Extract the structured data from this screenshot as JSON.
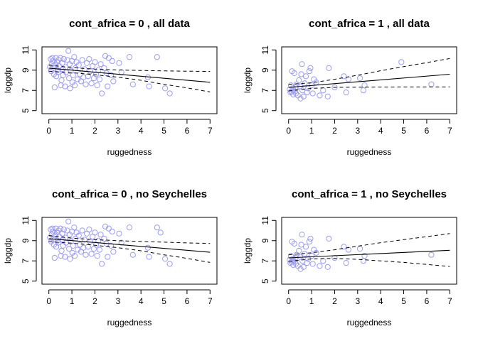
{
  "figure": {
    "background": "#ffffff",
    "point_color": "#9b9bf5",
    "line_color": "#000000"
  },
  "chart_data": [
    {
      "type": "scatter",
      "title": "cont_africa = 0 , all data",
      "xlabel": "ruggedness",
      "ylabel": "loggdp",
      "xlim": [
        -0.3,
        7.3
      ],
      "ylim": [
        4.7,
        11.3
      ],
      "xticks": [
        0,
        1,
        2,
        3,
        4,
        5,
        6,
        7
      ],
      "yticks": [
        5,
        7,
        9,
        11
      ],
      "points": [
        [
          0.05,
          9.3
        ],
        [
          0.08,
          10.1
        ],
        [
          0.1,
          8.9
        ],
        [
          0.12,
          9.6
        ],
        [
          0.15,
          10.2
        ],
        [
          0.18,
          9.9
        ],
        [
          0.2,
          9.2
        ],
        [
          0.22,
          8.6
        ],
        [
          0.25,
          7.3
        ],
        [
          0.28,
          9.5
        ],
        [
          0.3,
          10.2
        ],
        [
          0.32,
          8.4
        ],
        [
          0.35,
          9.8
        ],
        [
          0.38,
          9.0
        ],
        [
          0.4,
          8.8
        ],
        [
          0.42,
          10.0
        ],
        [
          0.45,
          9.4
        ],
        [
          0.5,
          10.2
        ],
        [
          0.52,
          7.5
        ],
        [
          0.55,
          8.0
        ],
        [
          0.58,
          9.7
        ],
        [
          0.6,
          9.1
        ],
        [
          0.62,
          8.5
        ],
        [
          0.65,
          10.1
        ],
        [
          0.7,
          7.4
        ],
        [
          0.72,
          9.3
        ],
        [
          0.75,
          8.8
        ],
        [
          0.8,
          10.0
        ],
        [
          0.85,
          10.9
        ],
        [
          0.88,
          8.2
        ],
        [
          0.9,
          9.6
        ],
        [
          0.92,
          7.2
        ],
        [
          0.95,
          8.9
        ],
        [
          1.0,
          9.9
        ],
        [
          1.02,
          7.8
        ],
        [
          1.05,
          8.5
        ],
        [
          1.1,
          10.3
        ],
        [
          1.12,
          7.5
        ],
        [
          1.15,
          9.2
        ],
        [
          1.2,
          9.8
        ],
        [
          1.25,
          8.1
        ],
        [
          1.3,
          9.5
        ],
        [
          1.35,
          8.6
        ],
        [
          1.4,
          7.9
        ],
        [
          1.45,
          10.0
        ],
        [
          1.5,
          8.3
        ],
        [
          1.55,
          9.1
        ],
        [
          1.6,
          7.6
        ],
        [
          1.65,
          9.7
        ],
        [
          1.7,
          8.4
        ],
        [
          1.75,
          10.1
        ],
        [
          1.8,
          8.9
        ],
        [
          1.85,
          7.7
        ],
        [
          1.9,
          9.4
        ],
        [
          1.95,
          8.2
        ],
        [
          2.0,
          9.8
        ],
        [
          2.05,
          8.6
        ],
        [
          2.1,
          7.5
        ],
        [
          2.15,
          9.0
        ],
        [
          2.2,
          8.1
        ],
        [
          2.25,
          9.6
        ],
        [
          2.3,
          6.7
        ],
        [
          2.4,
          9.2
        ],
        [
          2.45,
          10.4
        ],
        [
          2.5,
          8.7
        ],
        [
          2.55,
          7.4
        ],
        [
          2.6,
          10.2
        ],
        [
          2.7,
          8.5
        ],
        [
          2.75,
          9.9
        ],
        [
          2.8,
          7.9
        ],
        [
          3.05,
          9.7
        ],
        [
          3.15,
          8.8
        ],
        [
          3.5,
          10.3
        ],
        [
          3.65,
          7.6
        ],
        [
          4.3,
          8.3
        ],
        [
          4.35,
          7.4
        ],
        [
          4.7,
          10.3
        ],
        [
          5.05,
          7.2
        ],
        [
          5.25,
          6.7
        ]
      ],
      "fit": {
        "x": [
          0,
          7
        ],
        "y": [
          9.2,
          7.8
        ]
      },
      "band_upper": {
        "x": [
          0,
          1,
          2,
          3,
          4,
          5,
          6,
          7
        ],
        "y": [
          9.5,
          9.25,
          9.1,
          9.02,
          8.97,
          8.93,
          8.9,
          8.88
        ]
      },
      "band_lower": {
        "x": [
          0,
          1,
          2,
          3,
          4,
          5,
          6,
          7
        ],
        "y": [
          8.9,
          8.75,
          8.55,
          8.3,
          8.0,
          7.6,
          7.25,
          6.85
        ]
      }
    },
    {
      "type": "scatter",
      "title": "cont_africa = 1 , all data",
      "xlabel": "ruggedness",
      "ylabel": "loggdp",
      "xlim": [
        -0.3,
        7.3
      ],
      "ylim": [
        4.7,
        11.3
      ],
      "xticks": [
        0,
        1,
        2,
        3,
        4,
        5,
        6,
        7
      ],
      "yticks": [
        5,
        7,
        9,
        11
      ],
      "points": [
        [
          0.05,
          7.1
        ],
        [
          0.08,
          6.8
        ],
        [
          0.1,
          7.5
        ],
        [
          0.12,
          6.9
        ],
        [
          0.15,
          8.9
        ],
        [
          0.18,
          7.2
        ],
        [
          0.2,
          6.6
        ],
        [
          0.22,
          7.0
        ],
        [
          0.25,
          8.7
        ],
        [
          0.28,
          6.9
        ],
        [
          0.3,
          7.3
        ],
        [
          0.32,
          6.7
        ],
        [
          0.35,
          7.6
        ],
        [
          0.4,
          6.5
        ],
        [
          0.45,
          8.0
        ],
        [
          0.5,
          7.4
        ],
        [
          0.52,
          6.2
        ],
        [
          0.55,
          8.6
        ],
        [
          0.58,
          9.6
        ],
        [
          0.6,
          7.0
        ],
        [
          0.65,
          6.4
        ],
        [
          0.7,
          7.7
        ],
        [
          0.75,
          8.4
        ],
        [
          0.8,
          6.8
        ],
        [
          0.85,
          7.2
        ],
        [
          0.9,
          8.9
        ],
        [
          0.95,
          9.2
        ],
        [
          1.0,
          7.5
        ],
        [
          1.05,
          6.7
        ],
        [
          1.1,
          8.1
        ],
        [
          1.2,
          7.8
        ],
        [
          1.35,
          6.5
        ],
        [
          1.5,
          7.0
        ],
        [
          1.7,
          6.4
        ],
        [
          1.75,
          9.2
        ],
        [
          2.0,
          7.3
        ],
        [
          2.4,
          8.4
        ],
        [
          2.5,
          6.8
        ],
        [
          2.6,
          8.1
        ],
        [
          3.1,
          8.2
        ],
        [
          3.25,
          7.0
        ],
        [
          3.3,
          7.5
        ],
        [
          4.9,
          9.8
        ],
        [
          6.2,
          7.6
        ]
      ],
      "fit": {
        "x": [
          0,
          7
        ],
        "y": [
          7.3,
          8.6
        ]
      },
      "band_upper": {
        "x": [
          0,
          1,
          2,
          3,
          4,
          5,
          6,
          7
        ],
        "y": [
          7.6,
          7.75,
          8.1,
          8.5,
          8.95,
          9.35,
          9.75,
          10.15
        ]
      },
      "band_lower": {
        "x": [
          0,
          1,
          2,
          3,
          4,
          5,
          6,
          7
        ],
        "y": [
          6.95,
          7.2,
          7.3,
          7.32,
          7.33,
          7.34,
          7.34,
          7.35
        ]
      }
    },
    {
      "type": "scatter",
      "title": "cont_africa = 0 , no Seychelles",
      "xlabel": "ruggedness",
      "ylabel": "loggdp",
      "xlim": [
        -0.3,
        7.3
      ],
      "ylim": [
        4.7,
        11.3
      ],
      "xticks": [
        0,
        1,
        2,
        3,
        4,
        5,
        6,
        7
      ],
      "yticks": [
        5,
        7,
        9,
        11
      ],
      "points": [
        [
          0.05,
          9.3
        ],
        [
          0.08,
          10.1
        ],
        [
          0.1,
          8.9
        ],
        [
          0.12,
          9.6
        ],
        [
          0.15,
          10.2
        ],
        [
          0.18,
          9.9
        ],
        [
          0.2,
          9.2
        ],
        [
          0.22,
          8.6
        ],
        [
          0.25,
          7.3
        ],
        [
          0.28,
          9.5
        ],
        [
          0.3,
          10.2
        ],
        [
          0.32,
          8.4
        ],
        [
          0.35,
          9.8
        ],
        [
          0.38,
          9.0
        ],
        [
          0.4,
          8.8
        ],
        [
          0.42,
          10.0
        ],
        [
          0.45,
          9.4
        ],
        [
          0.5,
          10.2
        ],
        [
          0.52,
          7.5
        ],
        [
          0.55,
          8.0
        ],
        [
          0.58,
          9.7
        ],
        [
          0.6,
          9.1
        ],
        [
          0.62,
          8.5
        ],
        [
          0.65,
          10.1
        ],
        [
          0.7,
          7.4
        ],
        [
          0.72,
          9.3
        ],
        [
          0.75,
          8.8
        ],
        [
          0.8,
          10.0
        ],
        [
          0.85,
          10.9
        ],
        [
          0.88,
          8.2
        ],
        [
          0.9,
          9.6
        ],
        [
          0.92,
          7.2
        ],
        [
          0.95,
          8.9
        ],
        [
          1.0,
          9.9
        ],
        [
          1.02,
          7.8
        ],
        [
          1.05,
          8.5
        ],
        [
          1.1,
          10.3
        ],
        [
          1.12,
          7.5
        ],
        [
          1.15,
          9.2
        ],
        [
          1.2,
          9.8
        ],
        [
          1.25,
          8.1
        ],
        [
          1.3,
          9.5
        ],
        [
          1.35,
          8.6
        ],
        [
          1.4,
          7.9
        ],
        [
          1.45,
          10.0
        ],
        [
          1.5,
          8.3
        ],
        [
          1.55,
          9.1
        ],
        [
          1.6,
          7.6
        ],
        [
          1.65,
          9.7
        ],
        [
          1.7,
          8.4
        ],
        [
          1.75,
          10.1
        ],
        [
          1.8,
          8.9
        ],
        [
          1.85,
          7.7
        ],
        [
          1.9,
          9.4
        ],
        [
          1.95,
          8.2
        ],
        [
          2.0,
          9.8
        ],
        [
          2.05,
          8.6
        ],
        [
          2.1,
          7.5
        ],
        [
          2.15,
          9.0
        ],
        [
          2.2,
          8.1
        ],
        [
          2.25,
          9.6
        ],
        [
          2.3,
          6.7
        ],
        [
          2.4,
          9.2
        ],
        [
          2.45,
          10.4
        ],
        [
          2.5,
          8.7
        ],
        [
          2.55,
          7.4
        ],
        [
          2.6,
          10.2
        ],
        [
          2.7,
          8.5
        ],
        [
          2.75,
          9.9
        ],
        [
          2.8,
          7.9
        ],
        [
          3.05,
          9.7
        ],
        [
          3.15,
          8.8
        ],
        [
          3.5,
          10.3
        ],
        [
          3.65,
          7.6
        ],
        [
          4.3,
          8.3
        ],
        [
          4.35,
          7.4
        ],
        [
          4.7,
          10.3
        ],
        [
          4.85,
          9.8
        ],
        [
          5.05,
          7.2
        ],
        [
          5.25,
          6.7
        ]
      ],
      "fit": {
        "x": [
          0,
          7
        ],
        "y": [
          9.2,
          7.85
        ]
      },
      "band_upper": {
        "x": [
          0,
          1,
          2,
          3,
          4,
          5,
          6,
          7
        ],
        "y": [
          9.5,
          9.25,
          9.1,
          9.0,
          8.92,
          8.85,
          8.78,
          8.72
        ]
      },
      "band_lower": {
        "x": [
          0,
          1,
          2,
          3,
          4,
          5,
          6,
          7
        ],
        "y": [
          8.9,
          8.75,
          8.55,
          8.3,
          8.0,
          7.6,
          7.25,
          6.85
        ]
      }
    },
    {
      "type": "scatter",
      "title": "cont_africa = 1 , no Seychelles",
      "xlabel": "ruggedness",
      "ylabel": "loggdp",
      "xlim": [
        -0.3,
        7.3
      ],
      "ylim": [
        4.7,
        11.3
      ],
      "xticks": [
        0,
        1,
        2,
        3,
        4,
        5,
        6,
        7
      ],
      "yticks": [
        5,
        7,
        9,
        11
      ],
      "points": [
        [
          0.05,
          7.1
        ],
        [
          0.08,
          6.8
        ],
        [
          0.1,
          7.5
        ],
        [
          0.12,
          6.9
        ],
        [
          0.15,
          8.9
        ],
        [
          0.18,
          7.2
        ],
        [
          0.2,
          6.6
        ],
        [
          0.22,
          7.0
        ],
        [
          0.25,
          8.7
        ],
        [
          0.28,
          6.9
        ],
        [
          0.3,
          7.3
        ],
        [
          0.32,
          6.7
        ],
        [
          0.35,
          7.6
        ],
        [
          0.4,
          6.5
        ],
        [
          0.45,
          8.0
        ],
        [
          0.5,
          7.4
        ],
        [
          0.52,
          6.2
        ],
        [
          0.55,
          8.6
        ],
        [
          0.58,
          9.6
        ],
        [
          0.6,
          7.0
        ],
        [
          0.65,
          6.4
        ],
        [
          0.7,
          7.7
        ],
        [
          0.75,
          8.4
        ],
        [
          0.8,
          6.8
        ],
        [
          0.85,
          7.2
        ],
        [
          0.9,
          8.9
        ],
        [
          0.95,
          9.2
        ],
        [
          1.0,
          7.5
        ],
        [
          1.05,
          6.7
        ],
        [
          1.1,
          8.1
        ],
        [
          1.2,
          7.8
        ],
        [
          1.35,
          6.5
        ],
        [
          1.5,
          7.0
        ],
        [
          1.7,
          6.4
        ],
        [
          1.75,
          9.2
        ],
        [
          2.0,
          7.3
        ],
        [
          2.4,
          8.4
        ],
        [
          2.5,
          6.8
        ],
        [
          2.6,
          8.1
        ],
        [
          3.1,
          8.2
        ],
        [
          3.25,
          7.0
        ],
        [
          3.3,
          7.5
        ],
        [
          6.2,
          7.6
        ]
      ],
      "fit": {
        "x": [
          0,
          7
        ],
        "y": [
          7.3,
          8.05
        ]
      },
      "band_upper": {
        "x": [
          0,
          1,
          2,
          3,
          4,
          5,
          6,
          7
        ],
        "y": [
          7.6,
          7.8,
          8.1,
          8.45,
          8.8,
          9.1,
          9.4,
          9.7
        ]
      },
      "band_lower": {
        "x": [
          0,
          1,
          2,
          3,
          4,
          5,
          6,
          7
        ],
        "y": [
          6.95,
          7.2,
          7.25,
          7.15,
          7.0,
          6.85,
          6.65,
          6.45
        ]
      }
    }
  ]
}
